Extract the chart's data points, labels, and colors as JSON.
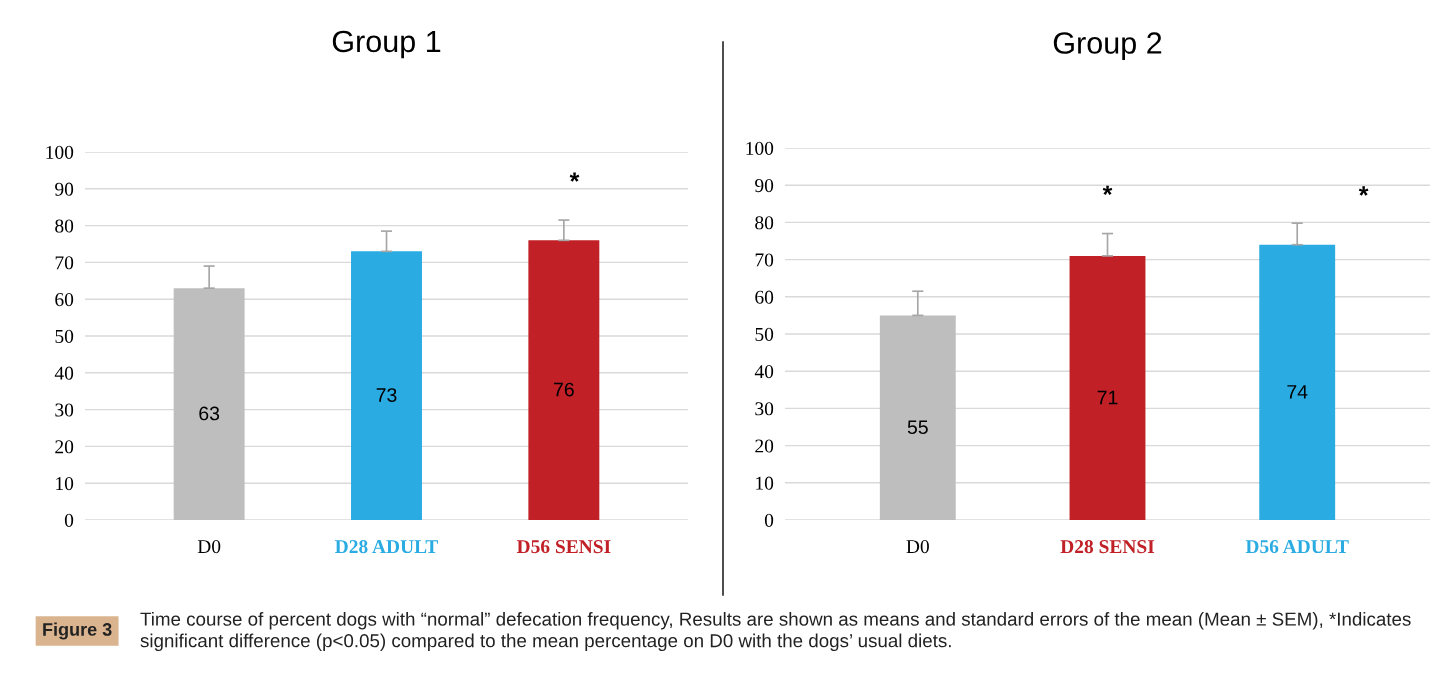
{
  "chart_data": [
    {
      "type": "bar",
      "title": "Group 1",
      "categories": [
        "D0",
        "D28 ADULT",
        "D56 SENSI"
      ],
      "values": [
        63,
        73,
        76
      ],
      "colors": [
        "#bebebe",
        "#2aabe2",
        "#c02026"
      ],
      "errors": [
        [
          63,
          69
        ],
        [
          73,
          78.5
        ],
        [
          76,
          81.5
        ]
      ],
      "data_labels": true,
      "ylim": [
        0,
        100
      ],
      "yticks": [
        0,
        10,
        20,
        30,
        40,
        50,
        60,
        70,
        80,
        90,
        100
      ],
      "grid": "y",
      "legend": false,
      "annotations": [
        "*",
        "Figure 3",
        "Time course of percent dogs with “normal” defecation frequency, Results are shown as means and standard errors of the mean (Mean ± SEM), *Indicates significant difference (p<0.05) compared to the mean percentage on D0 with the dogs’ usual diets."
      ]
    },
    {
      "type": "bar",
      "title": "Group 2",
      "categories": [
        "D0",
        "D28 SENSI",
        "D56 ADULT"
      ],
      "values": [
        55,
        71,
        74
      ],
      "colors": [
        "#bebebe",
        "#c02026",
        "#2aabe2"
      ],
      "errors": [
        [
          55,
          61.5
        ],
        [
          71,
          77
        ],
        [
          74,
          79.8
        ]
      ],
      "data_labels": true,
      "ylim": [
        0,
        100
      ],
      "yticks": [
        0,
        10,
        20,
        30,
        40,
        50,
        60,
        70,
        80,
        90,
        100
      ],
      "grid": "y",
      "legend": false,
      "annotations": [
        "*",
        "*"
      ]
    }
  ]
}
